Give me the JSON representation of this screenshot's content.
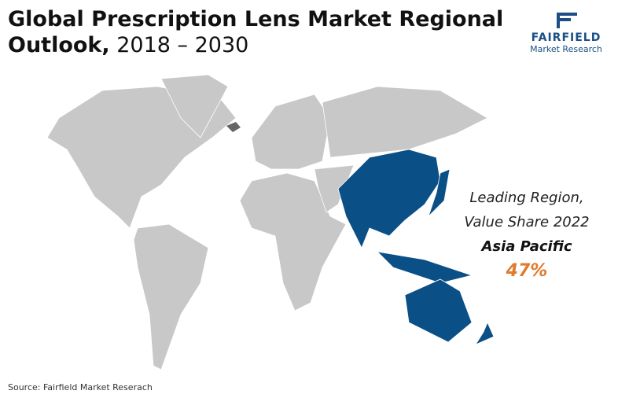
{
  "header": {
    "title_bold": "Global Prescription Lens Market Regional",
    "title_bold_2": "Outlook,",
    "title_years": "2018 – 2030"
  },
  "logo": {
    "brand": "FAIRFIELD",
    "sub": "Market Research"
  },
  "callout": {
    "line1": "Leading Region,",
    "line2": "Value Share 2022",
    "region": "Asia Pacific",
    "share": "47%"
  },
  "source": "Source: Fairfield Market Reserach"
}
